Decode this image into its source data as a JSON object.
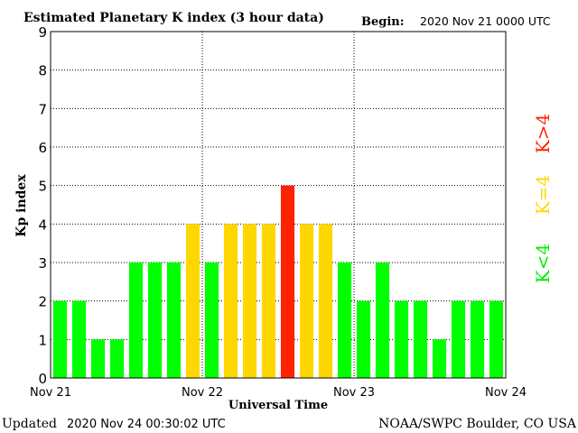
{
  "header": {
    "title": "Estimated Planetary K index (3 hour data)",
    "begin_label": "Begin:",
    "begin_value": "2020 Nov 21 0000 UTC"
  },
  "footer": {
    "updated_label": "Updated",
    "updated_value": "2020 Nov 24 00:30:02 UTC",
    "credit": "NOAA/SWPC Boulder, CO USA"
  },
  "legend": {
    "high": "K>4",
    "equal": "K=4",
    "low": "K<4"
  },
  "colors": {
    "low": "#00ff00",
    "equal": "#ffd700",
    "high": "#ff2200",
    "grid": "#000000",
    "background": "#ffffff"
  },
  "chart_data": {
    "type": "bar",
    "title": "Estimated Planetary K index (3 hour data)",
    "xlabel": "Universal Time",
    "ylabel": "Kp index",
    "ylim": [
      0,
      9
    ],
    "yticks": [
      "0",
      "1",
      "2",
      "3",
      "4",
      "5",
      "6",
      "7",
      "8",
      "9"
    ],
    "xticks": [
      "Nov 21",
      "Nov 22",
      "Nov 23",
      "Nov 24"
    ],
    "interval_hours": 3,
    "grid": true,
    "values": [
      2,
      2,
      1,
      1,
      3,
      3,
      3,
      4,
      3,
      4,
      4,
      4,
      5,
      4,
      4,
      3,
      2,
      3,
      2,
      2,
      1,
      2,
      2,
      2
    ]
  }
}
